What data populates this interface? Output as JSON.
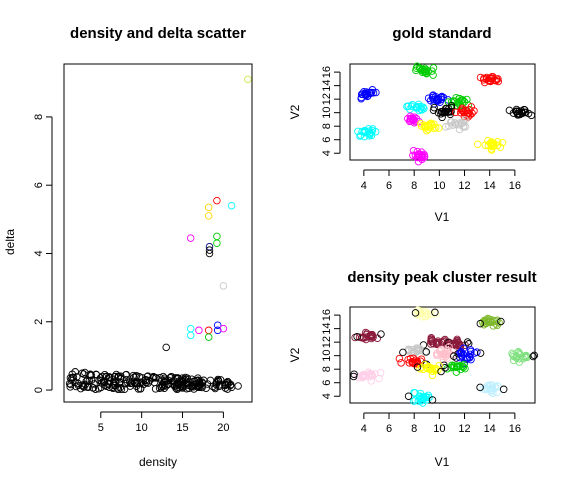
{
  "chart_data": [
    {
      "id": "decision",
      "type": "scatter",
      "title": "density and delta scatter",
      "xlabel": "density",
      "ylabel": "delta",
      "xlim": [
        0.5,
        23.5
      ],
      "ylim": [
        -0.35,
        9.55
      ],
      "xticks": [
        5,
        10,
        15,
        20
      ],
      "yticks": [
        0,
        2,
        4,
        6,
        8
      ],
      "marker": "open-circle",
      "background_points": {
        "color": "#000000",
        "x_range": [
          1,
          21
        ],
        "y_range": [
          0.02,
          0.55
        ],
        "count": 240
      },
      "points": [
        {
          "x": 23,
          "y": 9.1,
          "color": "#d2e84a"
        },
        {
          "x": 19.2,
          "y": 5.55,
          "color": "#ff0000"
        },
        {
          "x": 18.2,
          "y": 5.35,
          "color": "#ffd700"
        },
        {
          "x": 18.2,
          "y": 5.1,
          "color": "#ffd700"
        },
        {
          "x": 21,
          "y": 5.4,
          "color": "#00ffff"
        },
        {
          "x": 16,
          "y": 4.45,
          "color": "#ff00ff"
        },
        {
          "x": 19.2,
          "y": 4.5,
          "color": "#00cc00"
        },
        {
          "x": 19.2,
          "y": 4.3,
          "color": "#00cc00"
        },
        {
          "x": 18.3,
          "y": 4.2,
          "color": "#000080"
        },
        {
          "x": 18.3,
          "y": 4.1,
          "color": "#000000"
        },
        {
          "x": 18.3,
          "y": 4.0,
          "color": "#000000"
        },
        {
          "x": 20,
          "y": 3.05,
          "color": "#c8c8c8"
        },
        {
          "x": 19.3,
          "y": 1.9,
          "color": "#0000ff"
        },
        {
          "x": 19.3,
          "y": 1.75,
          "color": "#0000ff"
        },
        {
          "x": 20,
          "y": 1.8,
          "color": "#ff00ff"
        },
        {
          "x": 16,
          "y": 1.8,
          "color": "#00ffff"
        },
        {
          "x": 16,
          "y": 1.6,
          "color": "#00ffff"
        },
        {
          "x": 17,
          "y": 1.75,
          "color": "#ff00ff"
        },
        {
          "x": 18.2,
          "y": 1.75,
          "color": "#ff0000"
        },
        {
          "x": 18.2,
          "y": 1.55,
          "color": "#00cc00"
        },
        {
          "x": 13,
          "y": 1.25,
          "color": "#000000"
        },
        {
          "x": 21,
          "y": 0.08,
          "color": "#000000"
        },
        {
          "x": 21.8,
          "y": 0.12,
          "color": "#000000"
        }
      ]
    },
    {
      "id": "gold",
      "type": "scatter",
      "title": "gold standard",
      "xlabel": "V1",
      "ylabel": "V2",
      "xlim": [
        2.9,
        17.6
      ],
      "ylim": [
        3.0,
        17.2
      ],
      "xticks": [
        4,
        6,
        8,
        10,
        12,
        14,
        16
      ],
      "yticks": [
        4,
        6,
        8,
        10,
        12,
        14,
        16
      ],
      "marker": "open-circle",
      "clusters": [
        {
          "cx": 8.8,
          "cy": 16.2,
          "sx": 0.35,
          "sy": 0.3,
          "n": 22,
          "color": "#00cc00"
        },
        {
          "cx": 4.3,
          "cy": 12.8,
          "sx": 0.35,
          "sy": 0.35,
          "n": 22,
          "color": "#0000ff"
        },
        {
          "cx": 14.1,
          "cy": 15.0,
          "sx": 0.35,
          "sy": 0.3,
          "n": 22,
          "color": "#ff0000"
        },
        {
          "cx": 9.8,
          "cy": 12.0,
          "sx": 0.4,
          "sy": 0.35,
          "n": 22,
          "color": "#0000ff"
        },
        {
          "cx": 11.4,
          "cy": 11.6,
          "sx": 0.35,
          "sy": 0.35,
          "n": 20,
          "color": "#00cc00"
        },
        {
          "cx": 8.1,
          "cy": 10.8,
          "sx": 0.35,
          "sy": 0.3,
          "n": 18,
          "color": "#00ffff"
        },
        {
          "cx": 10.4,
          "cy": 10.2,
          "sx": 0.4,
          "sy": 0.4,
          "n": 22,
          "color": "#000000"
        },
        {
          "cx": 12.2,
          "cy": 10.0,
          "sx": 0.4,
          "sy": 0.4,
          "n": 22,
          "color": "#ff0000"
        },
        {
          "cx": 16.4,
          "cy": 9.9,
          "sx": 0.4,
          "sy": 0.3,
          "n": 22,
          "color": "#000000"
        },
        {
          "cx": 8.0,
          "cy": 9.0,
          "sx": 0.35,
          "sy": 0.3,
          "n": 18,
          "color": "#ff00ff"
        },
        {
          "cx": 11.4,
          "cy": 8.3,
          "sx": 0.4,
          "sy": 0.3,
          "n": 18,
          "color": "#c8c8c8"
        },
        {
          "cx": 9.2,
          "cy": 8.0,
          "sx": 0.35,
          "sy": 0.3,
          "n": 18,
          "color": "#ffff00"
        },
        {
          "cx": 4.3,
          "cy": 7.1,
          "sx": 0.4,
          "sy": 0.3,
          "n": 22,
          "color": "#00ffff"
        },
        {
          "cx": 14.1,
          "cy": 5.2,
          "sx": 0.35,
          "sy": 0.3,
          "n": 22,
          "color": "#ffff00"
        },
        {
          "cx": 8.5,
          "cy": 3.7,
          "sx": 0.35,
          "sy": 0.3,
          "n": 22,
          "color": "#ff00ff"
        }
      ]
    },
    {
      "id": "result",
      "type": "scatter",
      "title": "density peak cluster result",
      "xlabel": "V1",
      "ylabel": "V2",
      "xlim": [
        2.9,
        17.6
      ],
      "ylim": [
        3.0,
        17.2
      ],
      "xticks": [
        4,
        6,
        8,
        10,
        12,
        14,
        16
      ],
      "yticks": [
        4,
        6,
        8,
        10,
        12,
        14,
        16
      ],
      "marker": "open-circle",
      "clusters": [
        {
          "cx": 8.8,
          "cy": 16.2,
          "sx": 0.3,
          "sy": 0.25,
          "n": 16,
          "color": "#ffffaa"
        },
        {
          "cx": 4.3,
          "cy": 12.8,
          "sx": 0.35,
          "sy": 0.35,
          "n": 22,
          "color": "#8b1a3b"
        },
        {
          "cx": 14.1,
          "cy": 15.0,
          "sx": 0.35,
          "sy": 0.3,
          "n": 22,
          "color": "#7db82a"
        },
        {
          "cx": 9.8,
          "cy": 12.0,
          "sx": 0.4,
          "sy": 0.35,
          "n": 22,
          "color": "#8b1a3b"
        },
        {
          "cx": 11.4,
          "cy": 11.6,
          "sx": 0.35,
          "sy": 0.35,
          "n": 20,
          "color": "#8b1a3b"
        },
        {
          "cx": 8.1,
          "cy": 10.8,
          "sx": 0.35,
          "sy": 0.3,
          "n": 18,
          "color": "#c8c8c8"
        },
        {
          "cx": 10.4,
          "cy": 10.2,
          "sx": 0.4,
          "sy": 0.4,
          "n": 22,
          "color": "#ffc0cb"
        },
        {
          "cx": 12.2,
          "cy": 10.0,
          "sx": 0.4,
          "sy": 0.4,
          "n": 22,
          "color": "#0000ff"
        },
        {
          "cx": 16.4,
          "cy": 9.9,
          "sx": 0.4,
          "sy": 0.3,
          "n": 20,
          "color": "#7ee07e"
        },
        {
          "cx": 8.0,
          "cy": 9.0,
          "sx": 0.35,
          "sy": 0.3,
          "n": 18,
          "color": "#ff0000"
        },
        {
          "cx": 11.4,
          "cy": 8.3,
          "sx": 0.4,
          "sy": 0.3,
          "n": 18,
          "color": "#00cc00"
        },
        {
          "cx": 9.2,
          "cy": 8.0,
          "sx": 0.35,
          "sy": 0.3,
          "n": 18,
          "color": "#ffff00"
        },
        {
          "cx": 4.3,
          "cy": 7.1,
          "sx": 0.4,
          "sy": 0.3,
          "n": 22,
          "color": "#ffd0e8"
        },
        {
          "cx": 14.1,
          "cy": 5.2,
          "sx": 0.35,
          "sy": 0.3,
          "n": 22,
          "color": "#bfefff"
        },
        {
          "cx": 8.5,
          "cy": 3.7,
          "sx": 0.35,
          "sy": 0.3,
          "n": 22,
          "color": "#00ffff"
        }
      ],
      "outliers_color": "#000000"
    }
  ]
}
